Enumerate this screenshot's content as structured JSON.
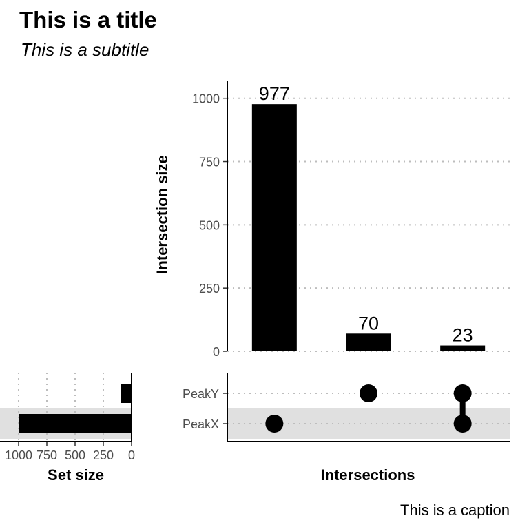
{
  "chart_data": {
    "type": "bar",
    "title": "This is a title",
    "subtitle": "This is a subtitle",
    "caption": "This is a caption",
    "intersections": {
      "ylabel": "Intersection size",
      "xlabel": "Intersections",
      "ylim": [
        0,
        1070
      ],
      "yticks": [
        0,
        250,
        500,
        750,
        1000
      ],
      "grid": true,
      "bars": [
        {
          "sets": [
            "PeakX"
          ],
          "value": 977,
          "label": "977"
        },
        {
          "sets": [
            "PeakY"
          ],
          "value": 70,
          "label": "70"
        },
        {
          "sets": [
            "PeakX",
            "PeakY"
          ],
          "value": 23,
          "label": "23"
        }
      ]
    },
    "sets": {
      "names": [
        "PeakY",
        "PeakX"
      ],
      "sizes": [
        93,
        1000
      ],
      "xlabel": "Set size",
      "xticks": [
        1000,
        750,
        500,
        250,
        0
      ],
      "xtick_labels": [
        "1000",
        "750",
        "500",
        "250",
        "0"
      ],
      "reversed": true,
      "shaded_row": "PeakX"
    },
    "colors": {
      "bar": "#000000",
      "grid": "#bdbdbd",
      "shade": "#e0e0e0",
      "dot": "#000000"
    }
  }
}
